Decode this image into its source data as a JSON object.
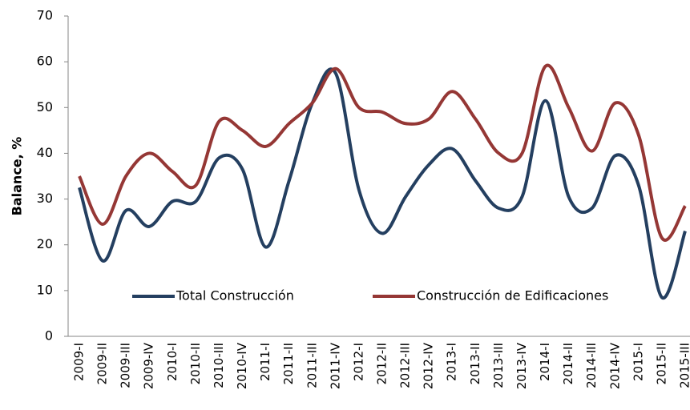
{
  "chart_data": {
    "type": "line",
    "y_label": "Balance, %",
    "categories": [
      "2009-I",
      "2009-II",
      "2009-III",
      "2009-IV",
      "2010-I",
      "2010-II",
      "2010-III",
      "2010-IV",
      "2011-I",
      "2011-II",
      "2011-III",
      "2011-IV",
      "2012-I",
      "2012-II",
      "2012-III",
      "2012-IV",
      "2013-I",
      "2013-II",
      "2013-III",
      "2013-IV",
      "2014-I",
      "2014-II",
      "2014-III",
      "2014-IV",
      "2015-I",
      "2015-II",
      "2015-III"
    ],
    "series": [
      {
        "name": "Total Construcción",
        "color": "#243f60",
        "values": [
          32.5,
          16.5,
          27.5,
          24,
          29.5,
          29.5,
          39,
          36.5,
          19.5,
          34,
          51,
          57.5,
          32,
          22.5,
          30.5,
          37.5,
          41,
          34,
          28,
          30.5,
          51.5,
          30.5,
          28,
          39.5,
          33,
          8.5,
          23
        ]
      },
      {
        "name": "Construcción de Edificaciones",
        "color": "#953735",
        "values": [
          35,
          24.5,
          35,
          40,
          36,
          33,
          47,
          45,
          41.5,
          46.5,
          51,
          58.5,
          50,
          49,
          46.5,
          47.5,
          53.5,
          47.5,
          40,
          40,
          59,
          50,
          40.5,
          51,
          44,
          21.5,
          28.5
        ]
      }
    ],
    "ylim": [
      0,
      70
    ],
    "yticks": [
      0,
      10,
      20,
      30,
      40,
      50,
      60,
      70
    ],
    "grid": false,
    "smooth": true
  }
}
